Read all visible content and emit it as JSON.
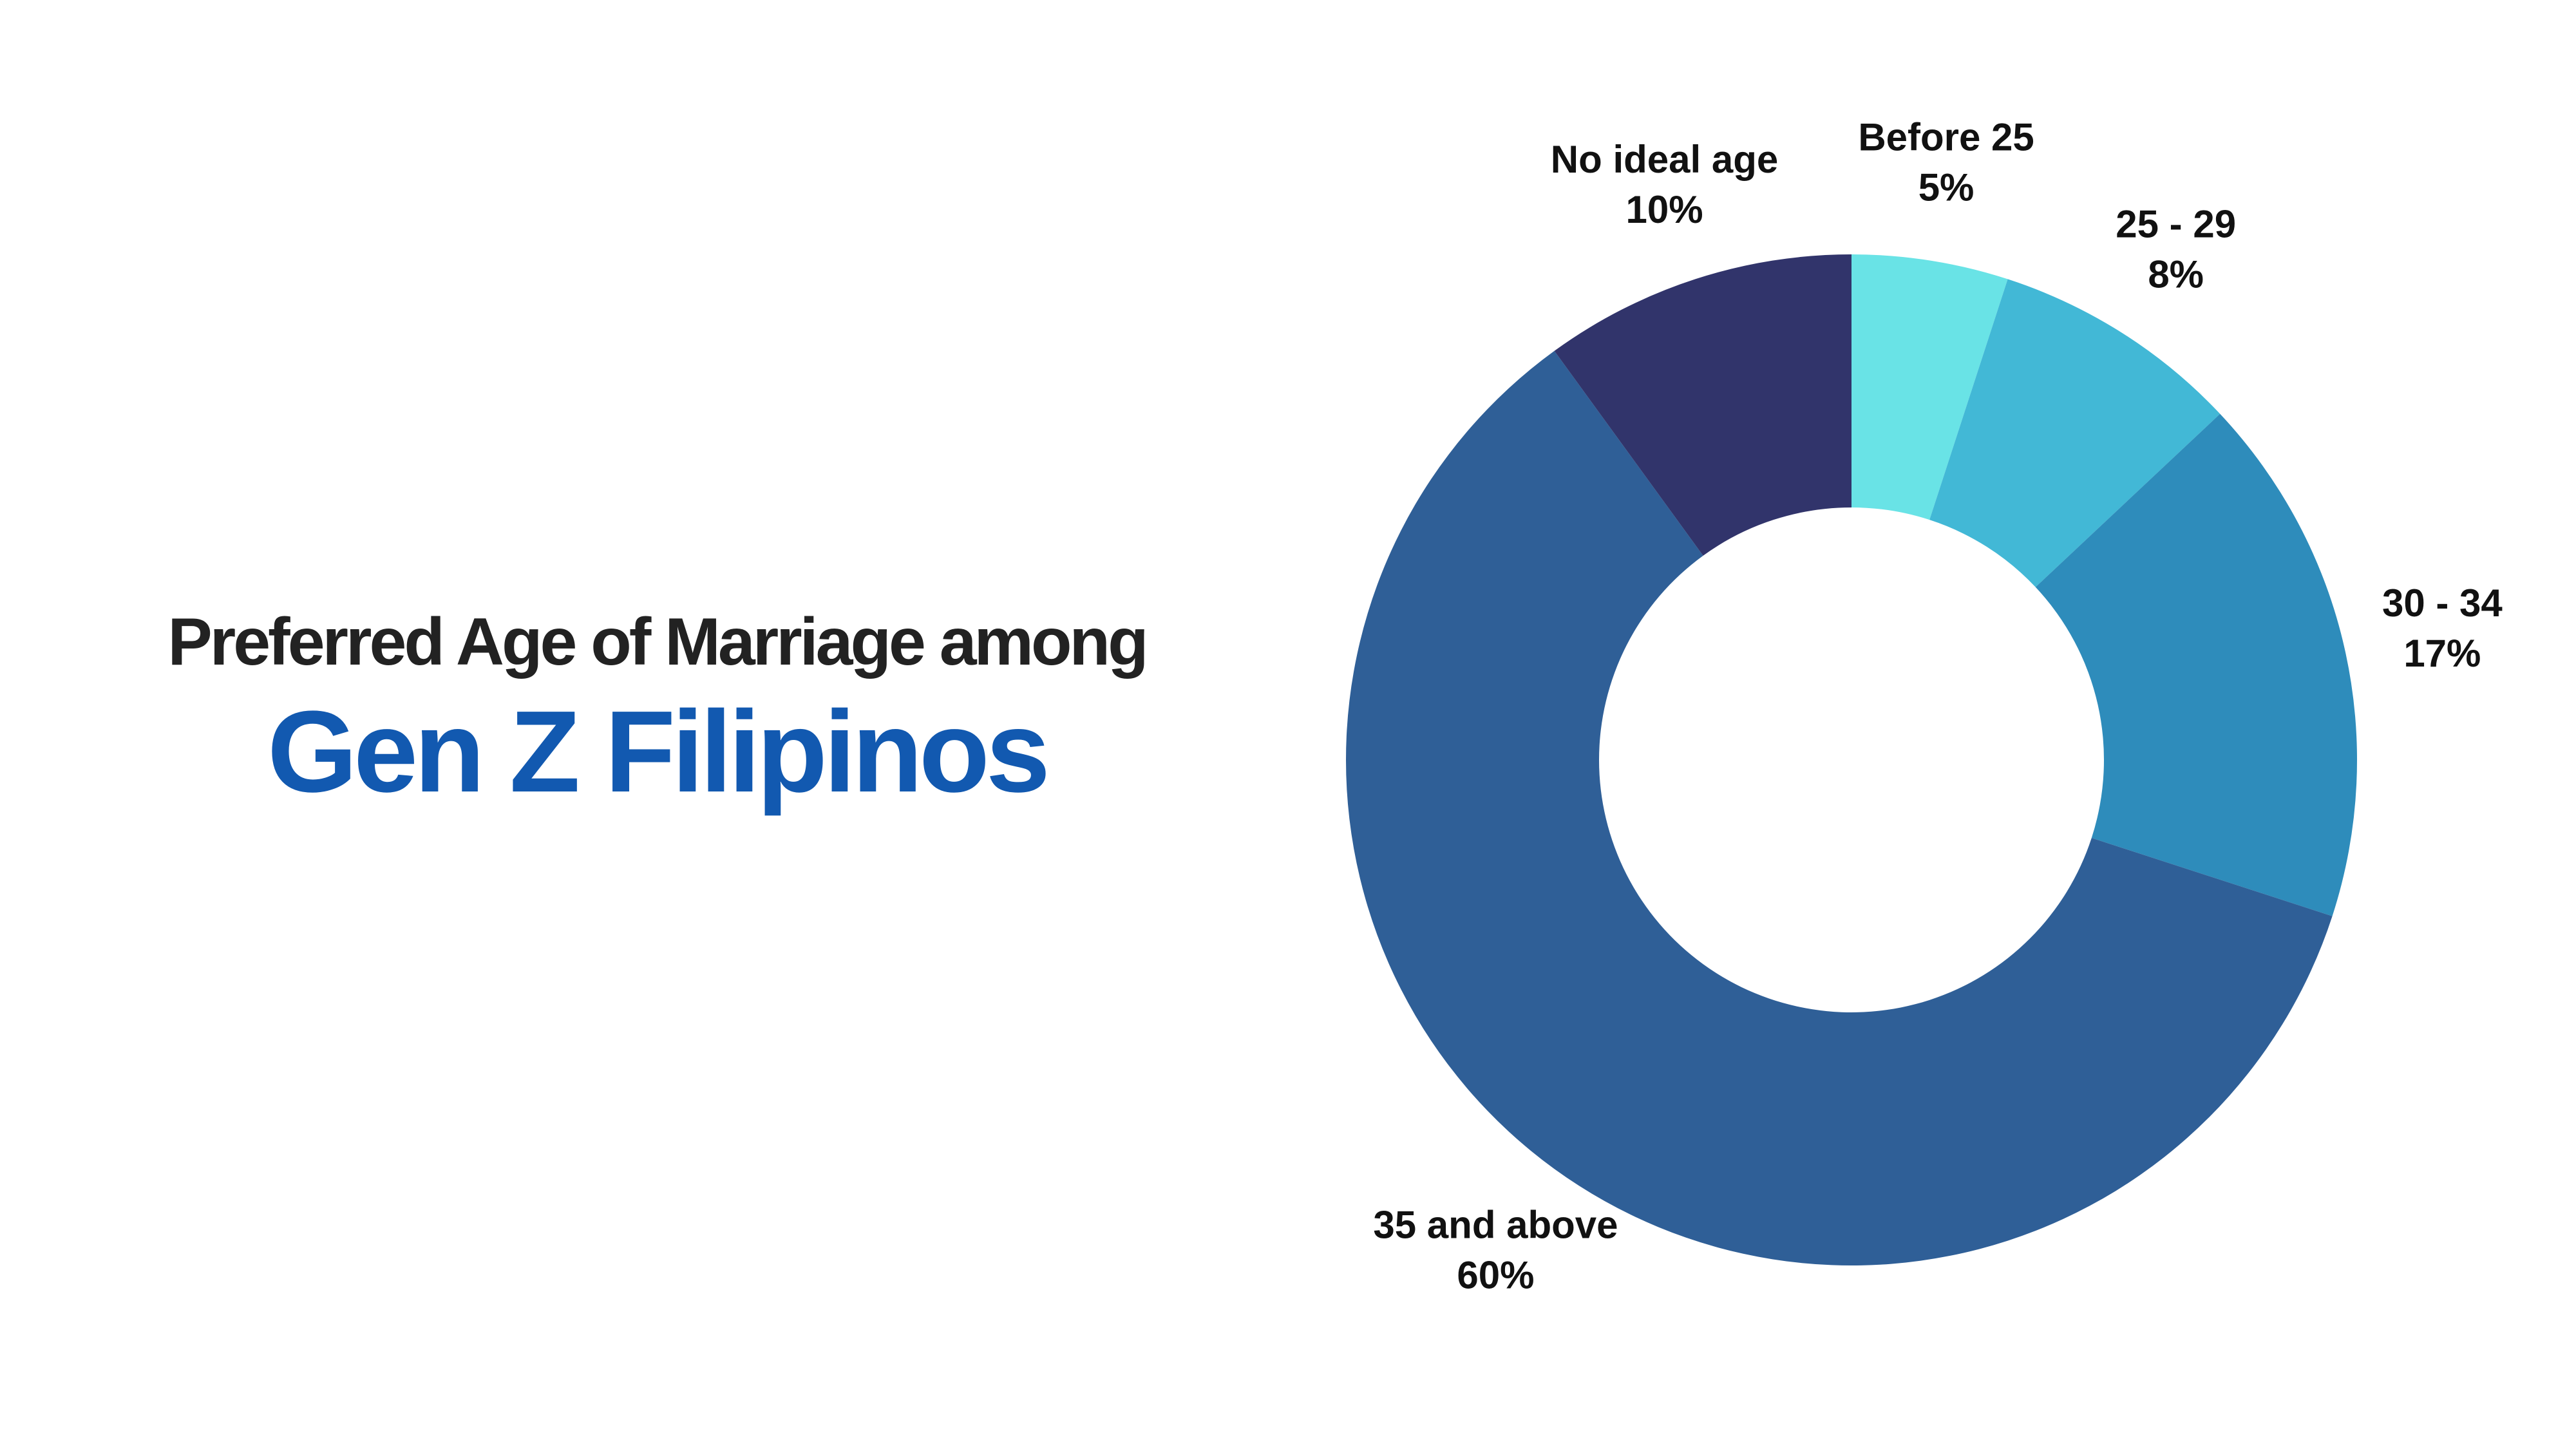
{
  "title": {
    "line1": "Preferred Age of Marriage among",
    "line2": "Gen Z Filipinos"
  },
  "chart_data": {
    "type": "pie",
    "variant": "donut",
    "categories": [
      "Before 25",
      "25 - 29",
      "30 - 34",
      "35 and above",
      "No ideal age"
    ],
    "values": [
      5,
      8,
      17,
      60,
      10
    ],
    "value_labels": [
      "5%",
      "8%",
      "17%",
      "60%",
      "10%"
    ],
    "colors": [
      "#69e3e6",
      "#42b8d6",
      "#2e8cbb",
      "#2f5f97",
      "#31346b"
    ],
    "start_angle_deg": 0,
    "direction": "clockwise",
    "legend": "none",
    "data_labels": "outside"
  }
}
